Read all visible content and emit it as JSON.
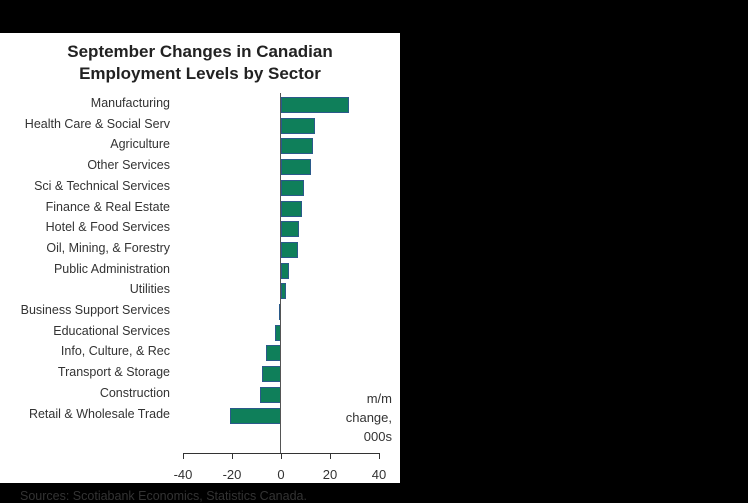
{
  "chart_data": {
    "type": "bar",
    "orientation": "horizontal",
    "title": "September Changes in Canadian Employment Levels by Sector",
    "title_lines": [
      "September Changes in Canadian",
      "Employment Levels by Sector"
    ],
    "categories": [
      "Manufacturing",
      "Health Care & Social Serv",
      "Agriculture",
      "Other Services",
      "Sci & Technical Services",
      "Finance & Real Estate",
      "Hotel & Food Services",
      "Oil, Mining, & Forestry",
      "Public Administration",
      "Utilities",
      "Business Support Services",
      "Educational Services",
      "Info, Culture, & Rec",
      "Transport & Storage",
      "Construction",
      "Retail & Wholesale Trade"
    ],
    "values": [
      27.8,
      13.9,
      13.0,
      12.3,
      9.4,
      8.6,
      7.5,
      7.0,
      3.3,
      2.0,
      -0.5,
      -2.4,
      -6.0,
      -7.7,
      -8.6,
      -20.8
    ],
    "xlabel": "m/m change, 000s",
    "unit_lines": [
      "m/m",
      "change,",
      "000s"
    ],
    "xlim": [
      -40,
      40
    ],
    "xticks": [
      "-40",
      "-20",
      "0",
      "20",
      "40"
    ],
    "grid": false,
    "bar_color": "#0f7f5a",
    "source": "Sources: Scotiabank Economics, Statistics Canada."
  }
}
